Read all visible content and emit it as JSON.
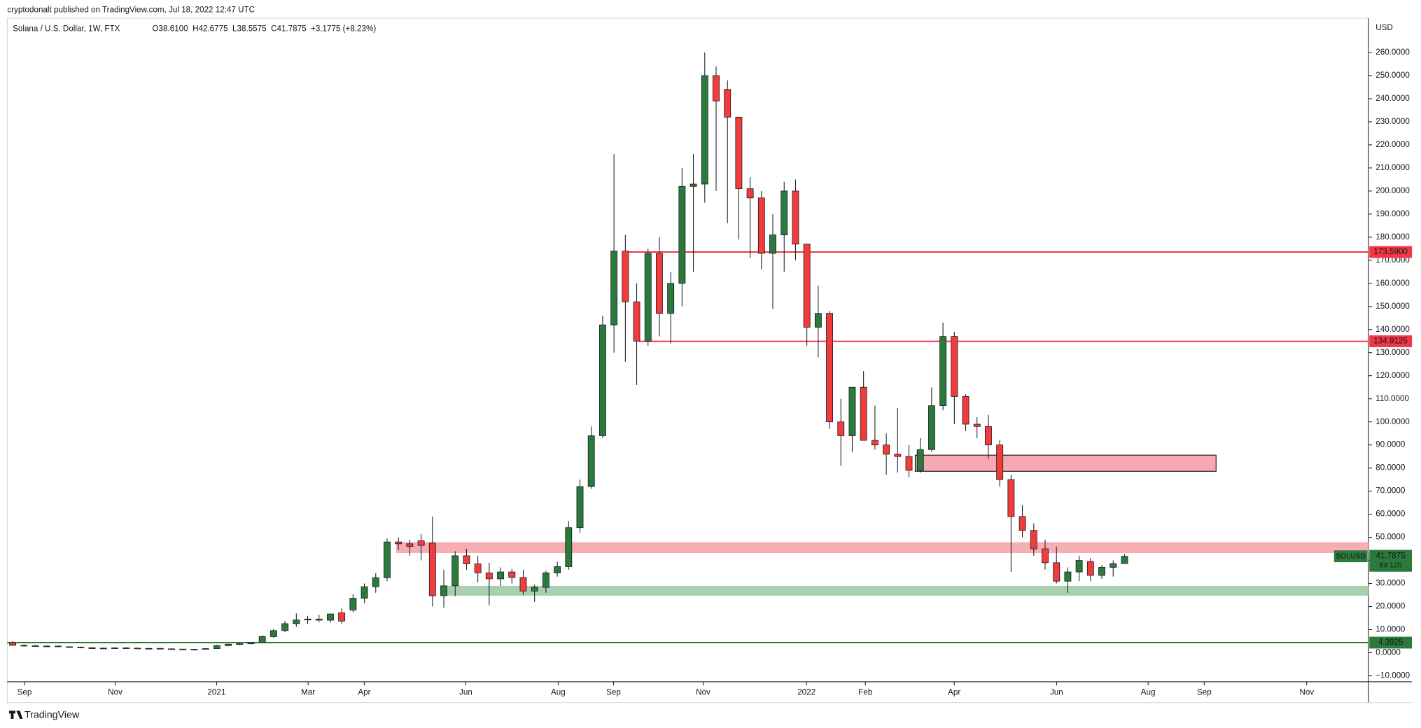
{
  "chart_data": {
    "type": "candlestick",
    "attribution": "cryptodonalt published on TradingView.com, Jul 18, 2022 12:47 UTC",
    "title": "Solana / U.S. Dollar, 1W, FTX",
    "ohlc_text": [
      "O38.6100",
      "H42.6775",
      "L38.5575",
      "C41.7875",
      "+3.1775 (+8.23%)"
    ],
    "currency": "USD",
    "footer": "TradingView",
    "up_color": "#2b7a3b",
    "down_color": "#f23b3b",
    "open": [
      4.4,
      3.2,
      3.0,
      2.8,
      2.9,
      2.6,
      2.4,
      2.2,
      1.8,
      2.0,
      2.1,
      2.0,
      1.8,
      1.9,
      1.7,
      1.6,
      1.4,
      1.5,
      1.8,
      3.1,
      3.7,
      3.9,
      4.4,
      7.0,
      9.6,
      12.6,
      14.2,
      14.6,
      14.1,
      17.3,
      18.5,
      23.6,
      28.6,
      32.5,
      48.0,
      47.2,
      48.5,
      47.5,
      24.7,
      29.0,
      42.0,
      38.5,
      34.6,
      32.0,
      35.0,
      32.6,
      26.7,
      28.3,
      34.6,
      37.3,
      54.2,
      72.0,
      94.0,
      142.0,
      174.0,
      152.0,
      135.0,
      173.0,
      147.0,
      160.0,
      202.0,
      203.0,
      250.0,
      244.0,
      232.0,
      201.0,
      197.0,
      173.0,
      181.0,
      200.0,
      177.0,
      141.0,
      147.0,
      100.0,
      94.0,
      115.0,
      92.0,
      90.0,
      86.0,
      85.0,
      79.0,
      88.0,
      107.0,
      137.0,
      111.0,
      99.0,
      98.0,
      90.0,
      75.0,
      59.0,
      53.0,
      45.0,
      39.0,
      31.0,
      35.0,
      39.5,
      33.5,
      37.0,
      38.61
    ],
    "high": [
      5.0,
      3.6,
      3.4,
      3.2,
      3.1,
      2.8,
      2.7,
      2.4,
      2.2,
      2.3,
      2.4,
      2.2,
      2.1,
      2.0,
      1.9,
      1.7,
      1.6,
      1.9,
      3.4,
      3.9,
      4.1,
      4.6,
      7.6,
      10.2,
      13.8,
      17.0,
      16.0,
      16.5,
      17.0,
      19.2,
      25.5,
      30.0,
      34.5,
      49.5,
      50.0,
      49.0,
      51.5,
      59.0,
      36.0,
      44.0,
      45.0,
      42.0,
      39.0,
      37.0,
      36.2,
      36.0,
      29.5,
      35.5,
      39.5,
      57.0,
      75.0,
      98.0,
      146.0,
      216.0,
      181.0,
      160.0,
      175.0,
      180.0,
      165.0,
      210.0,
      216.0,
      260.0,
      254.0,
      248.0,
      232.0,
      206.0,
      200.0,
      190.0,
      204.0,
      205.0,
      177.0,
      159.0,
      148.0,
      110.0,
      115.0,
      122.0,
      107.0,
      95.0,
      106.0,
      90.0,
      93.0,
      115.0,
      143.0,
      139.0,
      112.0,
      102.0,
      103.0,
      92.0,
      77.0,
      64.0,
      56.0,
      49.0,
      46.0,
      37.0,
      42.0,
      41.0,
      38.0,
      40.0,
      42.6775
    ],
    "low": [
      3.0,
      2.6,
      2.6,
      2.5,
      2.4,
      2.2,
      2.1,
      1.7,
      1.6,
      1.8,
      1.9,
      1.7,
      1.6,
      1.6,
      1.4,
      1.3,
      1.2,
      1.4,
      1.8,
      2.8,
      3.3,
      3.6,
      4.3,
      6.5,
      9.0,
      11.2,
      12.5,
      13.4,
      13.0,
      12.6,
      17.5,
      21.5,
      26.0,
      31.0,
      44.5,
      42.0,
      40.0,
      20.0,
      19.5,
      24.5,
      36.0,
      30.5,
      20.5,
      29.0,
      30.0,
      25.0,
      22.0,
      26.0,
      33.0,
      36.0,
      52.0,
      71.0,
      93.0,
      130.0,
      126.0,
      116.0,
      133.0,
      137.0,
      134.0,
      150.0,
      165.0,
      195.0,
      200.0,
      186.0,
      179.0,
      171.0,
      166.0,
      149.0,
      165.0,
      170.0,
      133.0,
      128.0,
      97.0,
      81.0,
      87.0,
      92.0,
      88.0,
      77.0,
      78.0,
      76.0,
      78.0,
      87.0,
      105.0,
      99.0,
      96.0,
      93.0,
      84.0,
      72.0,
      35.0,
      50.0,
      42.0,
      36.0,
      30.0,
      26.0,
      31.0,
      31.0,
      32.0,
      33.0,
      38.5575
    ],
    "close": [
      3.2,
      3.0,
      2.8,
      2.9,
      2.6,
      2.4,
      2.2,
      1.8,
      2.0,
      2.1,
      2.0,
      1.8,
      1.9,
      1.7,
      1.6,
      1.4,
      1.5,
      1.8,
      3.1,
      3.7,
      3.9,
      4.4,
      7.0,
      9.6,
      12.6,
      14.2,
      14.6,
      14.1,
      16.8,
      13.7,
      23.6,
      28.6,
      32.5,
      48.0,
      47.2,
      46.0,
      46.5,
      24.7,
      29.0,
      42.0,
      38.5,
      34.6,
      32.0,
      35.0,
      32.6,
      26.7,
      28.3,
      34.6,
      37.3,
      54.2,
      72.0,
      94.0,
      142.0,
      174.0,
      152.0,
      135.0,
      173.0,
      147.0,
      160.0,
      202.0,
      203.0,
      250.0,
      239.0,
      232.0,
      201.0,
      197.0,
      173.0,
      181.0,
      200.0,
      177.0,
      141.0,
      147.0,
      100.0,
      94.0,
      115.0,
      92.0,
      90.0,
      86.0,
      85.0,
      79.0,
      88.0,
      107.0,
      137.0,
      111.0,
      99.0,
      98.0,
      90.0,
      75.0,
      59.0,
      53.0,
      45.0,
      39.0,
      31.0,
      35.0,
      40.0,
      33.5,
      37.0,
      38.6,
      41.7875
    ],
    "last": {
      "symbol": "SOLUSD",
      "countdown": "6d 12h",
      "color": "#2b7a3b"
    },
    "levels": [
      {
        "value": 173.59,
        "label": "173.5900",
        "color": "#f23645",
        "from": 54
      },
      {
        "value": 134.9125,
        "color": "#f23645",
        "from": 55.2
      },
      {
        "value": 4.3925,
        "color": "#2b7a3b",
        "from": -0.48
      }
    ],
    "zones": [
      {
        "low": 43.2,
        "high": 47.9,
        "from": 33.8,
        "color": "#f6aeb3"
      },
      {
        "low": 24.7,
        "high": 29,
        "from": 38,
        "color": "#a8d0b0"
      },
      {
        "low": 78.6,
        "high": 85.6,
        "from": 79.55,
        "to": 106.07,
        "color": "#f7a9b1",
        "border": "#000000"
      }
    ],
    "xlim": [
      -0.48,
      119.5
    ],
    "xticks": [
      {
        "value": 1.04,
        "label": "Sep"
      },
      {
        "value": 9.03,
        "label": "Nov"
      },
      {
        "value": 17.97,
        "label": "2021"
      },
      {
        "value": 26.04,
        "label": "Mar"
      },
      {
        "value": 30.99,
        "label": "Apr"
      },
      {
        "value": 39.94,
        "label": "Jun"
      },
      {
        "value": 48.08,
        "label": "Aug"
      },
      {
        "value": 52.96,
        "label": "Sep"
      },
      {
        "value": 60.86,
        "label": "Nov"
      },
      {
        "value": 69.97,
        "label": "2022"
      },
      {
        "value": 75.16,
        "label": "Feb"
      },
      {
        "value": 82.99,
        "label": "Apr"
      },
      {
        "value": 92.01,
        "label": "Jun"
      },
      {
        "value": 100.08,
        "label": "Aug"
      },
      {
        "value": 105.03,
        "label": "Sep"
      },
      {
        "value": 114.06,
        "label": "Nov"
      }
    ],
    "ylim": [
      -12.57,
      274.1
    ],
    "yticks": [
      {
        "value": -10,
        "label": "−10.0000"
      },
      {
        "value": 0,
        "label": "0.0000"
      },
      {
        "value": 10,
        "label": "10.0000"
      },
      {
        "value": 20,
        "label": "20.0000"
      },
      {
        "value": 30,
        "label": "30.0000"
      },
      {
        "value": 40,
        "label": "40.0000"
      },
      {
        "value": 50,
        "label": "50.0000"
      },
      {
        "value": 60,
        "label": "60.0000"
      },
      {
        "value": 70,
        "label": "70.0000"
      },
      {
        "value": 80,
        "label": "80.0000"
      },
      {
        "value": 90,
        "label": "90.0000"
      },
      {
        "value": 100,
        "label": "100.0000"
      },
      {
        "value": 110,
        "label": "110.0000"
      },
      {
        "value": 120,
        "label": "120.0000"
      },
      {
        "value": 130,
        "label": "130.0000"
      },
      {
        "value": 140,
        "label": "140.0000"
      },
      {
        "value": 150,
        "label": "150.0000"
      },
      {
        "value": 160,
        "label": "160.0000"
      },
      {
        "value": 170,
        "label": "170.0000"
      },
      {
        "value": 180,
        "label": "180.0000"
      },
      {
        "value": 190,
        "label": "190.0000"
      },
      {
        "value": 200,
        "label": "200.0000"
      },
      {
        "value": 210,
        "label": "210.0000"
      },
      {
        "value": 220,
        "label": "220.0000"
      },
      {
        "value": 230,
        "label": "230.0000"
      },
      {
        "value": 240,
        "label": "240.0000"
      },
      {
        "value": 250,
        "label": "250.0000"
      },
      {
        "value": 260,
        "label": "260.0000"
      }
    ],
    "grid": false
  }
}
